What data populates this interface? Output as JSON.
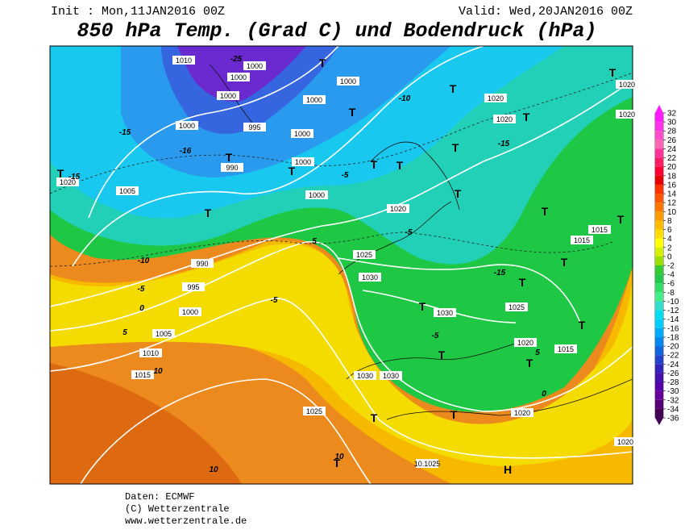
{
  "header": {
    "init": "Init : Mon,11JAN2016 00Z",
    "valid": "Valid: Wed,20JAN2016 00Z",
    "title": "850 hPa Temp. (Grad C) und Bodendruck (hPa)"
  },
  "map": {
    "isobar_labels": [
      "1010",
      "1000",
      "1000",
      "1000",
      "1000",
      "1000",
      "1000",
      "995",
      "1000",
      "990",
      "1000",
      "1000",
      "1005",
      "1020",
      "990",
      "995",
      "1000",
      "1005",
      "1010",
      "1015",
      "1020",
      "1020",
      "1020",
      "1025",
      "1030",
      "1030",
      "1025",
      "1020",
      "1015",
      "1015",
      "1015",
      "1030",
      "1030",
      "1025",
      "1020",
      "10.1025",
      "1020",
      "1020",
      "1020"
    ],
    "temperature_labels": [
      "-15",
      "-16",
      "-15",
      "-10",
      "-5",
      "0",
      "5",
      "10",
      "-10",
      "-15",
      "-5",
      "-5",
      "-15",
      "-5",
      "5",
      "-5",
      "0",
      "5",
      "10",
      "10",
      "-25"
    ],
    "markers": [
      "T",
      "T",
      "T",
      "T",
      "T",
      "T",
      "T",
      "T",
      "T",
      "T",
      "T",
      "T",
      "T",
      "T",
      "T",
      "T",
      "T",
      "T",
      "T",
      "T",
      "T",
      "T",
      "T",
      "T",
      "H"
    ]
  },
  "colorbar": {
    "ticks": [
      32,
      30,
      28,
      26,
      24,
      22,
      20,
      18,
      16,
      14,
      12,
      10,
      8,
      6,
      4,
      2,
      0,
      -2,
      -4,
      -6,
      -8,
      -10,
      -12,
      -14,
      -16,
      -18,
      -20,
      -22,
      -24,
      -26,
      -28,
      -30,
      -32,
      -34,
      -36
    ],
    "colors": [
      "#ff1aff",
      "#ff33e6",
      "#ff4dcc",
      "#ff66b3",
      "#ff3399",
      "#ff1a66",
      "#ff0033",
      "#e60000",
      "#ff3300",
      "#ff5500",
      "#ff7700",
      "#ff9900",
      "#ffbb00",
      "#ffdd00",
      "#ffff00",
      "#d4f000",
      "#99e000",
      "#33cc33",
      "#22c84a",
      "#33dd66",
      "#44ee88",
      "#33ddcc",
      "#00ddee",
      "#00ccff",
      "#00aaff",
      "#0088ee",
      "#1166dd",
      "#2244cc",
      "#3322bb",
      "#4411aa",
      "#5500aa",
      "#660099",
      "#550077",
      "#440055"
    ]
  },
  "footer": {
    "lines": [
      "Daten: ECMWF",
      "(C) Wetterzentrale",
      "www.wetterzentrale.de"
    ]
  }
}
